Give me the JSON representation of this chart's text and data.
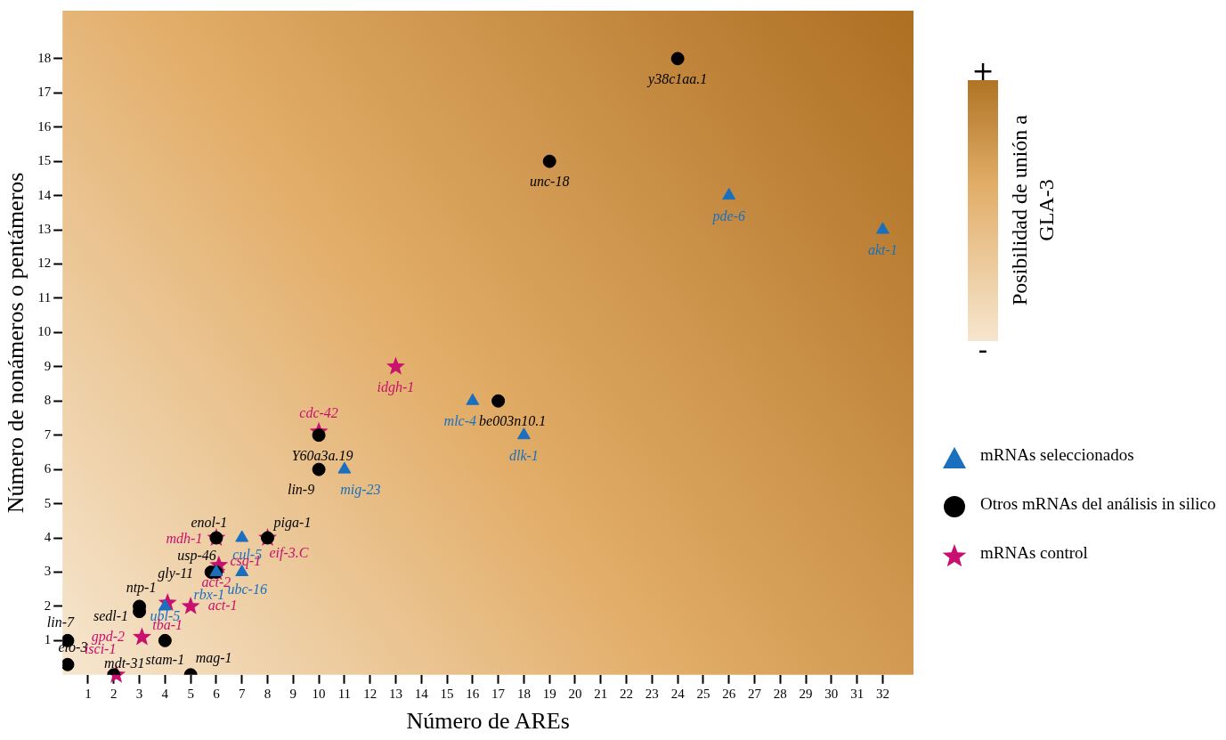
{
  "chart_data": {
    "type": "scatter",
    "xlabel": "Número de AREs",
    "ylabel": "Número de nonámeros o pentámeros",
    "clabel": "Posibilidad de unión a GLA-3",
    "clim": [
      0,
      1
    ],
    "cticks": [
      {
        "value": 0,
        "label": "-"
      },
      {
        "value": 1,
        "label": "+"
      }
    ],
    "xlim": [
      0,
      33.2
    ],
    "ylim": [
      0,
      19.4
    ],
    "xticks": [
      1,
      2,
      3,
      4,
      5,
      6,
      7,
      8,
      9,
      10,
      11,
      12,
      13,
      14,
      15,
      16,
      17,
      18,
      19,
      20,
      21,
      22,
      23,
      24,
      25,
      26,
      27,
      28,
      29,
      30,
      31,
      32
    ],
    "yticks": [
      1,
      2,
      3,
      4,
      5,
      6,
      7,
      8,
      9,
      10,
      11,
      12,
      13,
      14,
      15,
      16,
      17,
      18
    ],
    "grid": false,
    "legend": "right",
    "series": [
      {
        "name": "mRNAs seleccionados",
        "color": "#1a6fbf",
        "marker": "triangle",
        "x": [
          11,
          16,
          18,
          26,
          32,
          7,
          7,
          6,
          4
        ],
        "values": [
          6,
          8,
          7,
          14,
          13,
          4,
          3,
          3,
          2
        ],
        "value_labels": [
          "mig-23",
          "mlc-4",
          "dlk-1",
          "pde-6",
          "akt-1",
          "cul-5",
          "ubc-16",
          "rbx-1",
          "ubl-5"
        ]
      },
      {
        "name": "Otros mRNAs del análisis in silico",
        "color": "#000000",
        "marker": "circle",
        "x": [
          24,
          19,
          17,
          10,
          10,
          6,
          8,
          6,
          5.8,
          3,
          3,
          4,
          5,
          0.2,
          0.2,
          2
        ],
        "values": [
          18,
          15,
          8,
          7,
          6,
          4,
          4,
          3,
          3,
          2,
          1.85,
          1,
          0,
          0.3,
          1,
          0
        ],
        "value_labels": [
          "y38c1aa.1",
          "unc-18",
          "be003n10.1",
          "Y60a3a.19",
          "lin-9",
          "enol-1",
          "piga-1",
          "usp-46",
          "gly-11",
          "ntp-1",
          "sedl-1",
          "stam-1",
          "mag-1",
          "elo-3",
          "lin-7",
          "mdt-31"
        ]
      },
      {
        "name": "mRNAs control",
        "color": "#c8106e",
        "marker": "star",
        "x": [
          10,
          13,
          6,
          8,
          6.1,
          6,
          5,
          4.1,
          3.1,
          2.1
        ],
        "values": [
          7.1,
          9,
          4,
          4,
          3.2,
          3,
          2,
          2.1,
          1.1,
          0
        ],
        "value_labels": [
          "cdc-42",
          "idgh-1",
          "mdh-1",
          "eif-3.C",
          "csq-1",
          "act-2",
          "act-1",
          "tba-1",
          "gpd-2",
          "isci-1"
        ]
      }
    ]
  }
}
